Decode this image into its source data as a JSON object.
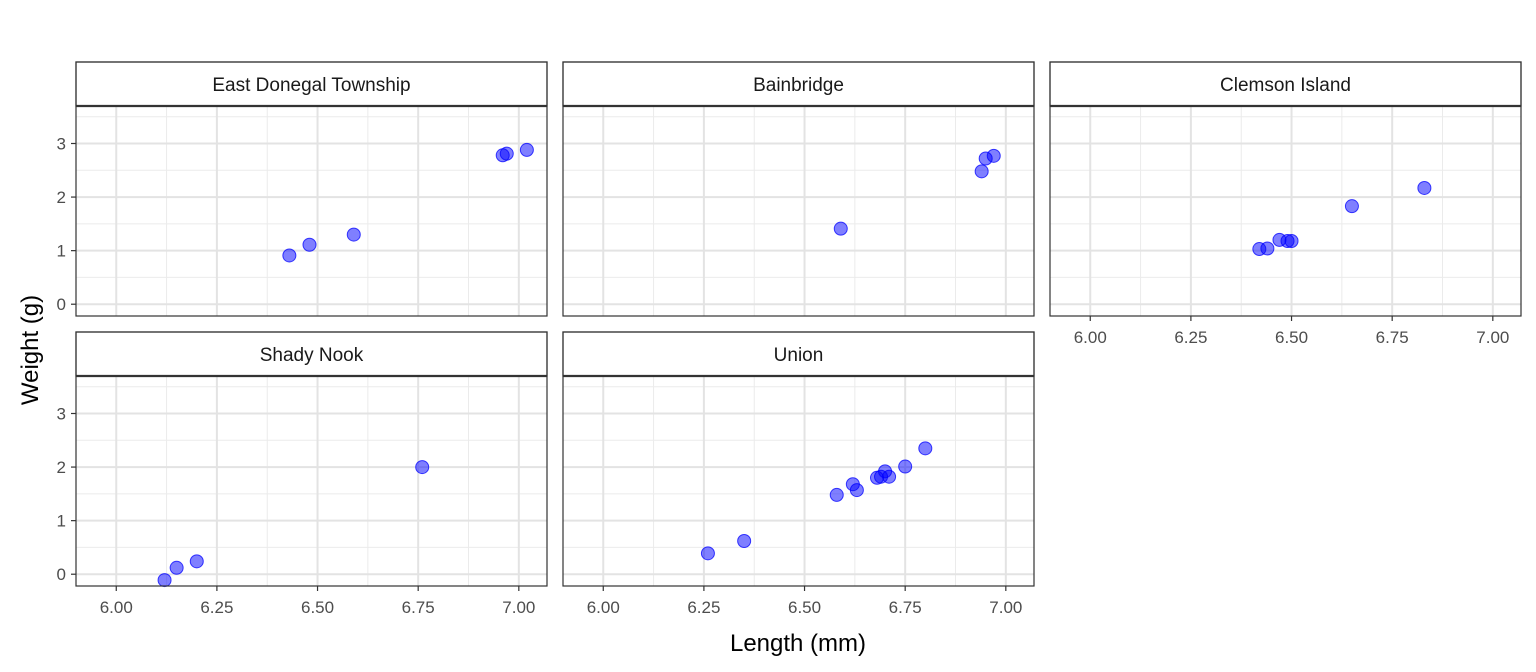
{
  "chart_data": {
    "type": "scatter",
    "xlabel": "Length (mm)",
    "ylabel": "Weight (g)",
    "xlim": [
      5.9,
      7.07
    ],
    "ylim": [
      -0.22,
      3.7
    ],
    "x_ticks": [
      6.0,
      6.25,
      6.5,
      6.75,
      7.0
    ],
    "x_tick_labels": [
      "6.00",
      "6.25",
      "6.50",
      "6.75",
      "7.00"
    ],
    "y_ticks": [
      0,
      1,
      2,
      3
    ],
    "y_tick_labels": [
      "0",
      "1",
      "2",
      "3"
    ],
    "grid": true,
    "point_color": "#0000ff",
    "point_opacity": 0.5,
    "facets": [
      {
        "name": "East Donegal Township",
        "points": [
          {
            "x": 6.43,
            "y": 0.91
          },
          {
            "x": 6.48,
            "y": 1.11
          },
          {
            "x": 6.59,
            "y": 1.3
          },
          {
            "x": 6.96,
            "y": 2.78
          },
          {
            "x": 6.97,
            "y": 2.81
          },
          {
            "x": 7.02,
            "y": 2.88
          }
        ]
      },
      {
        "name": "Bainbridge",
        "points": [
          {
            "x": 6.59,
            "y": 1.41
          },
          {
            "x": 6.94,
            "y": 2.48
          },
          {
            "x": 6.95,
            "y": 2.72
          },
          {
            "x": 6.97,
            "y": 2.77
          }
        ]
      },
      {
        "name": "Clemson Island",
        "points": [
          {
            "x": 6.42,
            "y": 1.03
          },
          {
            "x": 6.44,
            "y": 1.04
          },
          {
            "x": 6.47,
            "y": 1.2
          },
          {
            "x": 6.49,
            "y": 1.18
          },
          {
            "x": 6.5,
            "y": 1.18
          },
          {
            "x": 6.65,
            "y": 1.83
          },
          {
            "x": 6.83,
            "y": 2.17
          }
        ]
      },
      {
        "name": "Shady Nook",
        "points": [
          {
            "x": 6.12,
            "y": -0.11
          },
          {
            "x": 6.15,
            "y": 0.12
          },
          {
            "x": 6.2,
            "y": 0.24
          },
          {
            "x": 6.76,
            "y": 2.0
          }
        ]
      },
      {
        "name": "Union",
        "points": [
          {
            "x": 6.26,
            "y": 0.39
          },
          {
            "x": 6.35,
            "y": 0.62
          },
          {
            "x": 6.58,
            "y": 1.48
          },
          {
            "x": 6.62,
            "y": 1.68
          },
          {
            "x": 6.63,
            "y": 1.57
          },
          {
            "x": 6.68,
            "y": 1.8
          },
          {
            "x": 6.69,
            "y": 1.82
          },
          {
            "x": 6.7,
            "y": 1.92
          },
          {
            "x": 6.71,
            "y": 1.82
          },
          {
            "x": 6.75,
            "y": 2.01
          },
          {
            "x": 6.8,
            "y": 2.35
          }
        ]
      }
    ]
  }
}
